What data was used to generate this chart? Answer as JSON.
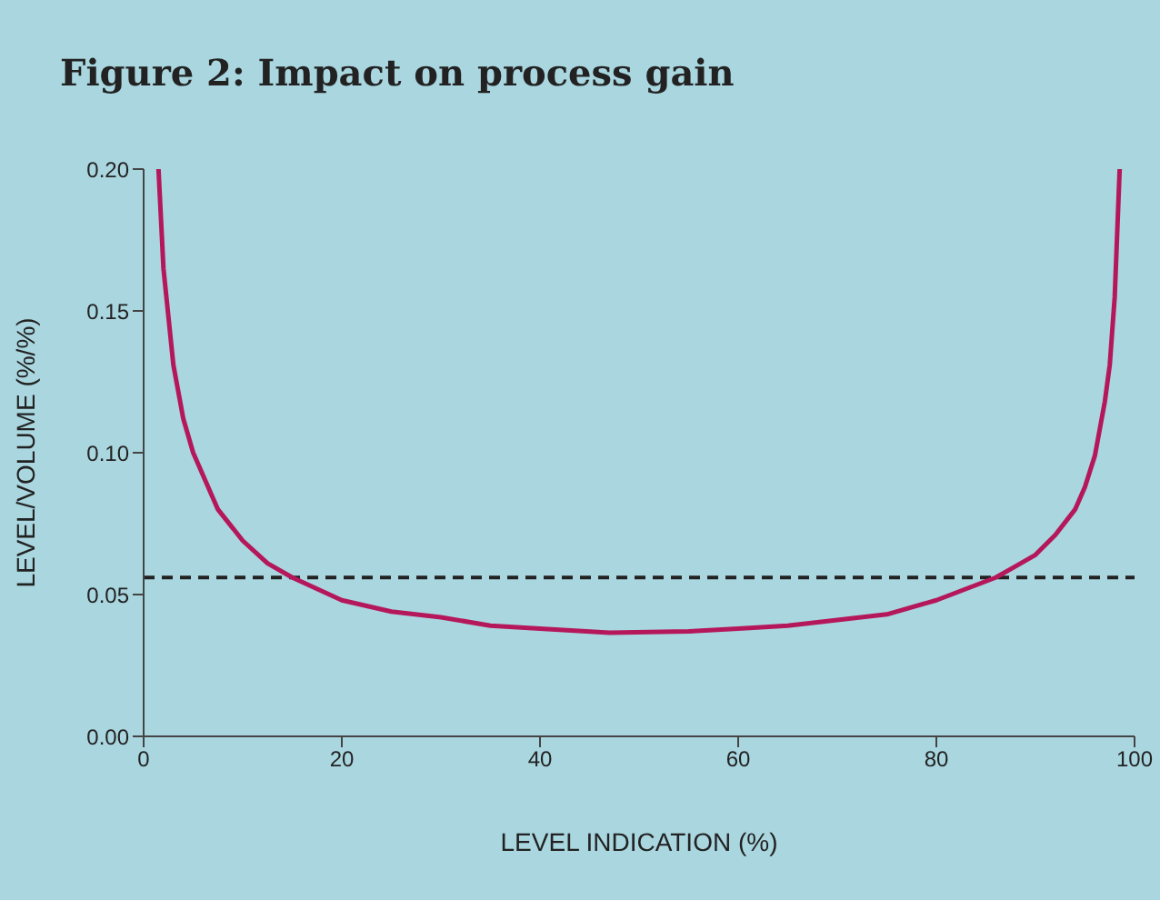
{
  "chart_data": {
    "type": "line",
    "title": "Figure 2: Impact on process gain",
    "xlabel": "LEVEL INDICATION (%)",
    "ylabel": "LEVEL/VOLUME (%/%)",
    "x": [
      1.5,
      2,
      3,
      4,
      5,
      7.5,
      10,
      12.5,
      15,
      20,
      25,
      30,
      35,
      40,
      47,
      55,
      60,
      65,
      70,
      75,
      80,
      83,
      86,
      88,
      90,
      92,
      94,
      95,
      96,
      97,
      97.5,
      98,
      98.5
    ],
    "series": [
      {
        "color": "#b5175b",
        "values": [
          0.2,
          0.165,
          0.131,
          0.112,
          0.1,
          0.08,
          0.069,
          0.061,
          0.056,
          0.048,
          0.044,
          0.042,
          0.039,
          0.038,
          0.0365,
          0.037,
          0.038,
          0.039,
          0.041,
          0.043,
          0.048,
          0.052,
          0.056,
          0.06,
          0.064,
          0.071,
          0.08,
          0.088,
          0.099,
          0.118,
          0.131,
          0.155,
          0.2
        ]
      }
    ],
    "xlim": [
      0,
      100
    ],
    "xticks": [
      0,
      20,
      40,
      60,
      80,
      100
    ],
    "ylim": [
      0,
      0.2
    ],
    "yticks": [
      {
        "value": 0,
        "label": "0.00"
      },
      {
        "value": 0.05,
        "label": "0.05"
      },
      {
        "value": 0.1,
        "label": "0.10"
      },
      {
        "value": 0.15,
        "label": "0.15"
      },
      {
        "value": 0.2,
        "label": "0.20"
      }
    ],
    "ref_lines": [
      {
        "axis": "y",
        "value": 0.056,
        "label": null,
        "color": "#222222",
        "line_style": "dashed"
      }
    ],
    "grid": false,
    "legend": false,
    "marker": "none",
    "line_style": "solid"
  }
}
